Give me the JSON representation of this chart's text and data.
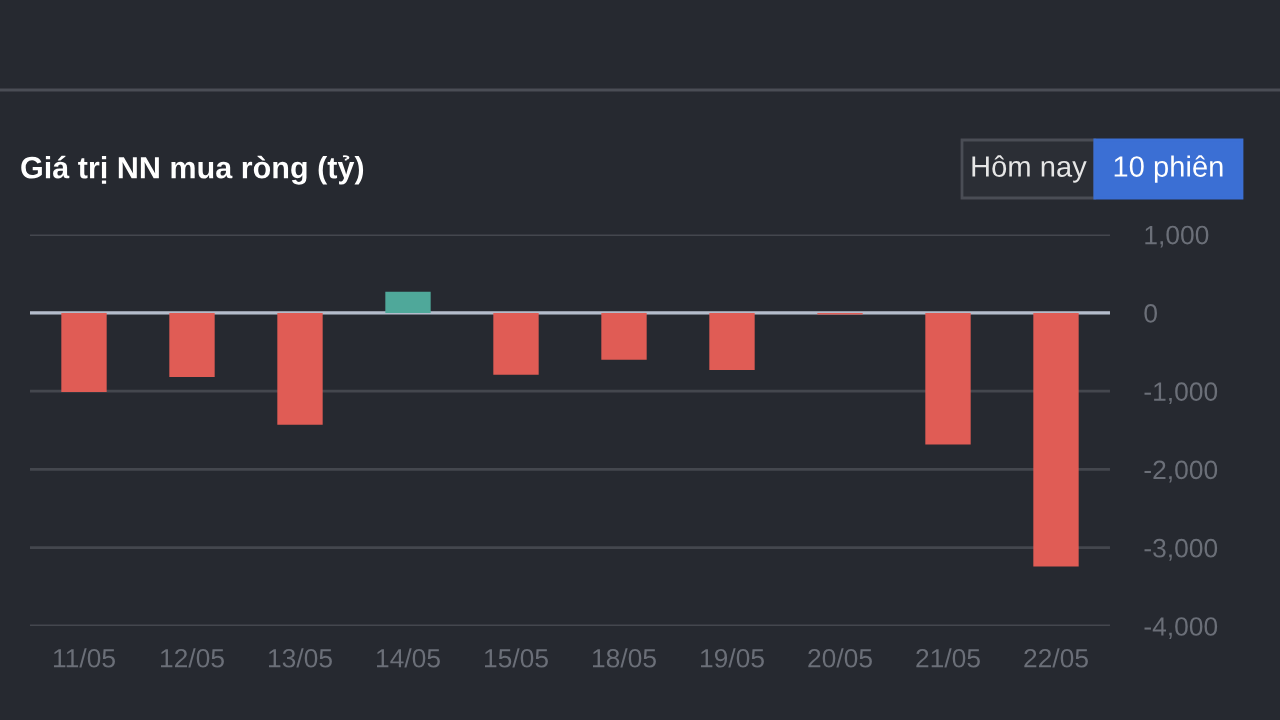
{
  "chart_data": {
    "type": "bar",
    "title": "Giá trị NN mua ròng (tỷ)",
    "annotations": [
      "Hôm nay",
      "10 phiên"
    ],
    "categories": [
      "11/05",
      "12/05",
      "13/05",
      "14/05",
      "15/05",
      "18/05",
      "19/05",
      "20/05",
      "21/05",
      "22/05"
    ],
    "values": [
      -1010,
      -820,
      -1430,
      270,
      -790,
      -600,
      -730,
      -20,
      -1680,
      -3240
    ],
    "colors": [
      "#e05c55",
      "#e05c55",
      "#e05c55",
      "#4fa89a",
      "#e05c55",
      "#e05c55",
      "#e05c55",
      "#e05c55",
      "#e05c55",
      "#e05c55"
    ],
    "ylim": [
      -4000,
      1000
    ],
    "yticks": [
      {
        "value": -4000,
        "label": "-4,000"
      },
      {
        "value": -3000,
        "label": "-3,000"
      },
      {
        "value": -2000,
        "label": "-2,000"
      },
      {
        "value": -1000,
        "label": "-1,000"
      },
      0,
      {
        "value": 1000,
        "label": "1,000"
      }
    ],
    "ref_lines": [
      {
        "axis": "y",
        "value": 0,
        "color": "#b4bccb"
      }
    ],
    "grid": "y"
  }
}
